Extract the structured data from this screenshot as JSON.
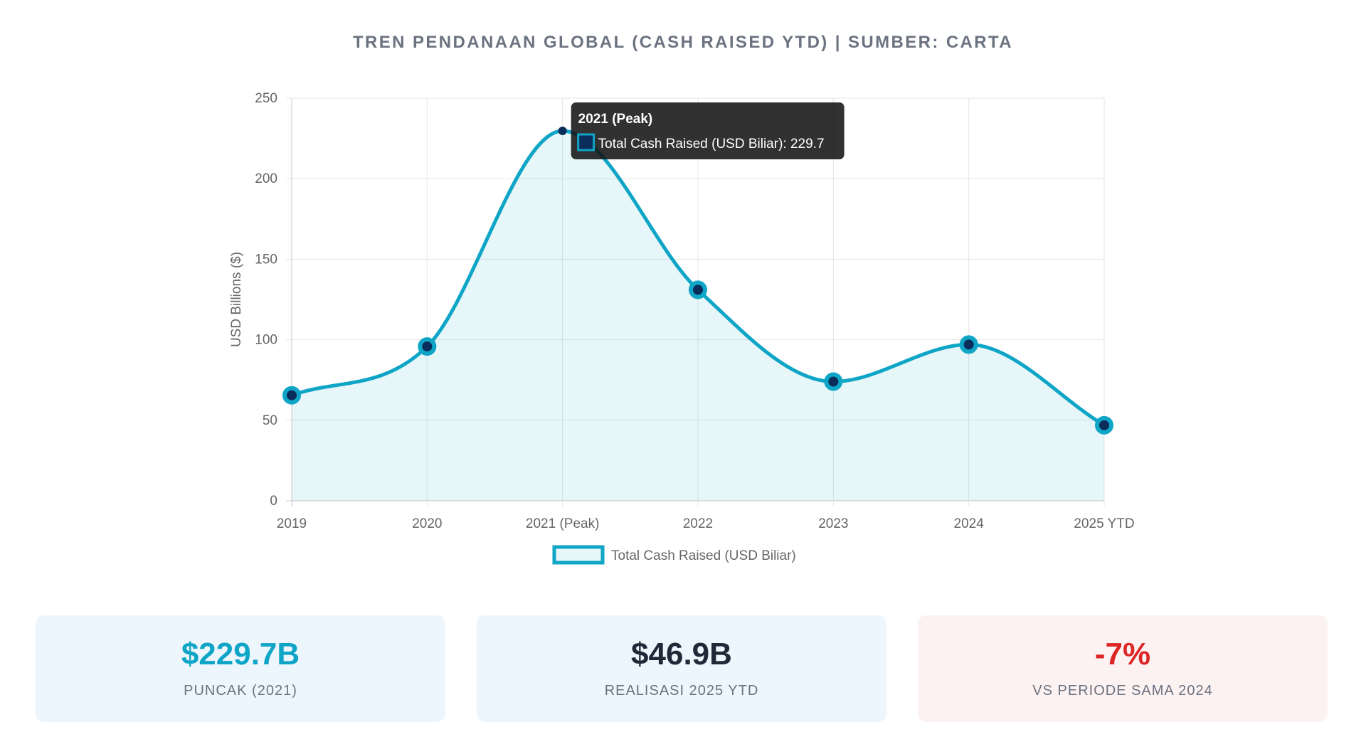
{
  "title": "TREN PENDANAAN GLOBAL (CASH RAISED YTD) | SUMBER: CARTA",
  "chart_data": {
    "type": "line",
    "title": "TREN PENDANAAN GLOBAL (CASH RAISED YTD) | SUMBER: CARTA",
    "categories": [
      "2019",
      "2020",
      "2021 (Peak)",
      "2022",
      "2023",
      "2024",
      "2025 YTD"
    ],
    "series": [
      {
        "name": "Total Cash Raised (USD Biliar)",
        "values": [
          65.5,
          95.8,
          229.7,
          131.0,
          74.0,
          97.0,
          46.9
        ],
        "color": "#0ea5c6",
        "point_color": "#0b2d5b",
        "fill": "rgba(14,165,198,0.10)"
      }
    ],
    "xlabel": "",
    "ylabel": "USD Billions ($)",
    "ylim": [
      0,
      250
    ],
    "yticks": [
      "0",
      "50",
      "100",
      "150",
      "200",
      "250"
    ],
    "grid": true,
    "legend": "bottom",
    "tooltip": {
      "index": 2,
      "title": "2021 (Peak)",
      "text": "Total Cash Raised (USD Biliar): 229.7"
    }
  },
  "cards": [
    {
      "value": "$229.7B",
      "label": "PUNCAK (2021)",
      "value_color": "#0ea5c6",
      "bg": "#eef6fd"
    },
    {
      "value": "$46.9B",
      "label": "REALISASI 2025 YTD",
      "value_color": "#1f2937",
      "bg": "#eef6fd"
    },
    {
      "value": "-7%",
      "label": "VS PERIODE SAMA 2024",
      "value_color": "#dc2626",
      "bg": "#fdf2f2"
    }
  ]
}
